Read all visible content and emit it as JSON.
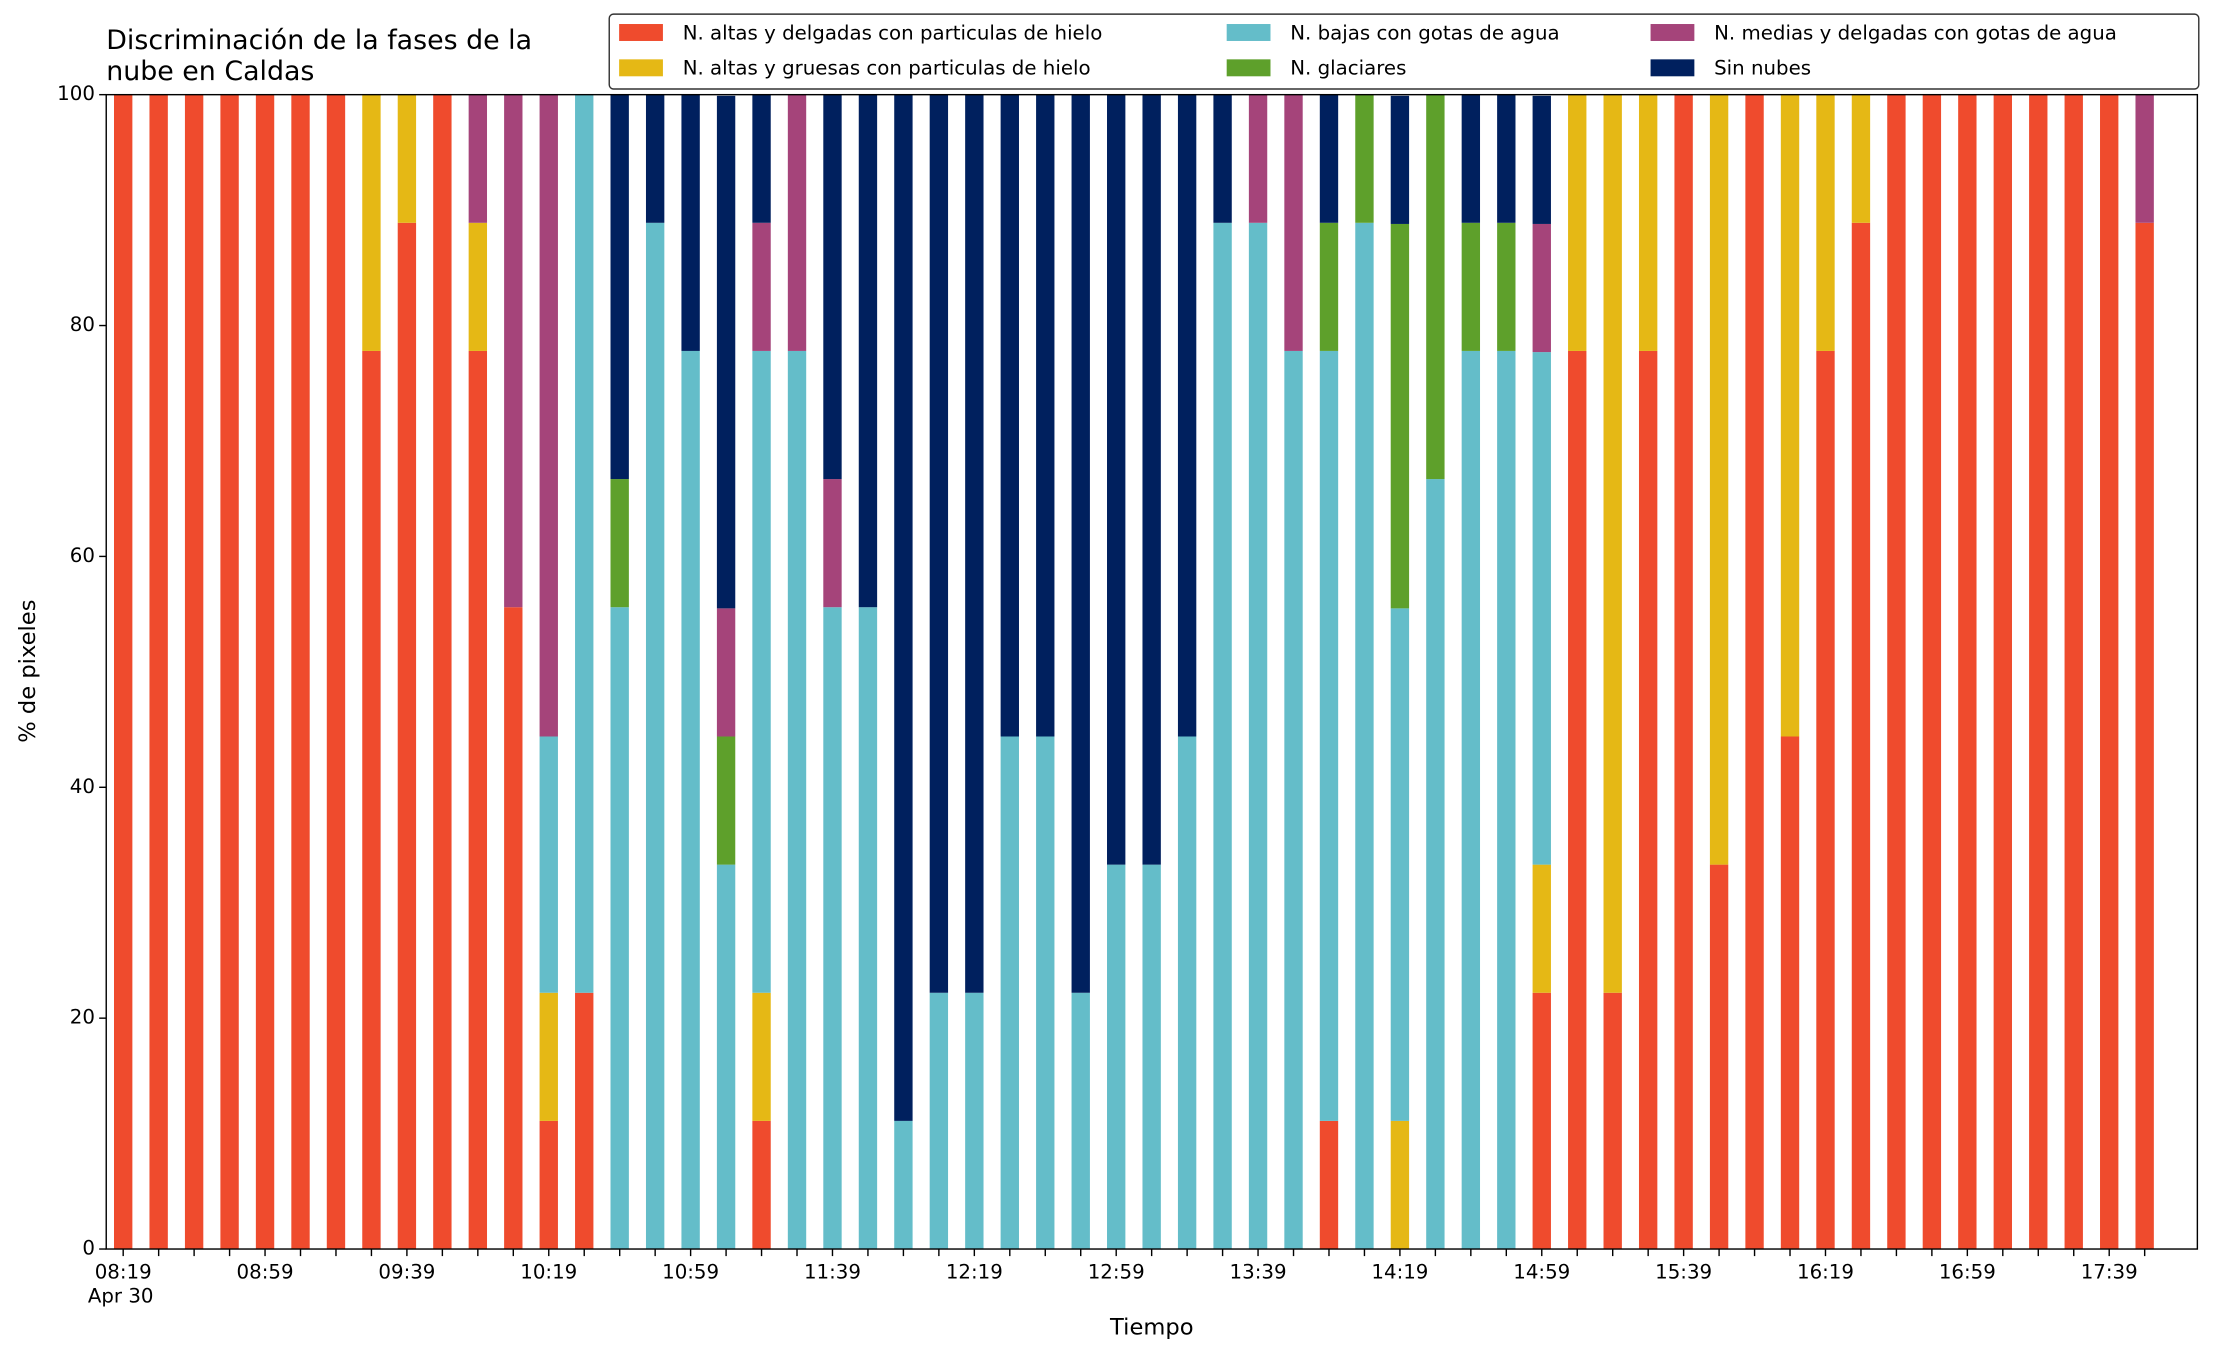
{
  "chart_data": {
    "type": "stacked_bar",
    "title": "Discriminación de la fases de la\nnube en Caldas",
    "xlabel": "Tiempo",
    "ylabel": "% de pixeles",
    "date_label": "Apr 30",
    "categories": [
      "08:19",
      null,
      null,
      null,
      "08:59",
      null,
      null,
      null,
      "09:39",
      null,
      null,
      null,
      "10:19",
      null,
      null,
      null,
      "10:59",
      null,
      null,
      null,
      "11:39",
      null,
      null,
      null,
      "12:19",
      null,
      null,
      null,
      "12:59",
      null,
      null,
      null,
      "13:39",
      null,
      null,
      null,
      "14:19",
      null,
      null,
      null,
      "14:59",
      null,
      null,
      null,
      "15:39",
      null,
      null,
      null,
      "16:19",
      null,
      null,
      null,
      "16:59",
      null,
      null,
      null,
      "17:39",
      null
    ],
    "ylim": [
      0,
      100
    ],
    "yticks": [
      0,
      20,
      40,
      60,
      80,
      100
    ],
    "legend": "upper right",
    "series": [
      {
        "name": "N. altas y delgadas con particulas de hielo",
        "color": "#ef4b2d",
        "values": [
          100,
          100,
          100,
          100,
          100,
          100,
          100,
          77.8,
          88.9,
          100,
          77.8,
          55.6,
          11.1,
          22.2,
          0,
          0,
          0,
          0,
          11.1,
          0,
          0,
          0,
          0,
          0,
          0,
          0,
          0,
          0,
          0,
          0,
          0,
          0,
          0,
          0,
          11.1,
          0,
          0,
          0,
          0,
          0,
          22.2,
          77.8,
          22.2,
          77.8,
          100,
          33.3,
          100,
          44.4,
          77.8,
          88.9,
          100,
          100,
          100,
          100,
          100,
          100,
          100,
          88.9
        ]
      },
      {
        "name": "N. altas y gruesas con particulas de hielo",
        "color": "#e5b815",
        "values": [
          0,
          0,
          0,
          0,
          0,
          0,
          0,
          22.2,
          11.1,
          0,
          11.1,
          0,
          11.1,
          0,
          0,
          0,
          0,
          0,
          11.1,
          0,
          0,
          0,
          0,
          0,
          0,
          0,
          0,
          0,
          0,
          0,
          0,
          0,
          0,
          0,
          0,
          0,
          11.1,
          0,
          0,
          0,
          11.1,
          22.2,
          77.8,
          22.2,
          0,
          66.7,
          0,
          55.6,
          22.2,
          11.1,
          0,
          0,
          0,
          0,
          0,
          0,
          0,
          0
        ]
      },
      {
        "name": "N. bajas con gotas de agua",
        "color": "#64bdc9",
        "values": [
          0,
          0,
          0,
          0,
          0,
          0,
          0,
          0,
          0,
          0,
          0,
          0,
          22.2,
          77.8,
          55.6,
          88.9,
          77.8,
          33.3,
          55.6,
          77.8,
          55.6,
          55.6,
          11.1,
          22.2,
          22.2,
          44.4,
          44.4,
          22.2,
          33.3,
          33.3,
          44.4,
          88.9,
          88.9,
          77.8,
          66.7,
          88.9,
          44.4,
          66.7,
          77.8,
          77.8,
          44.4,
          0,
          0,
          0,
          0,
          0,
          0,
          0,
          0,
          0,
          0,
          0,
          0,
          0,
          0,
          0,
          0,
          0
        ]
      },
      {
        "name": "N. glaciares",
        "color": "#5ea02b",
        "values": [
          0,
          0,
          0,
          0,
          0,
          0,
          0,
          0,
          0,
          0,
          0,
          0,
          0,
          0,
          11.1,
          0,
          0,
          11.1,
          0,
          0,
          0,
          0,
          0,
          0,
          0,
          0,
          0,
          0,
          0,
          0,
          0,
          0,
          0,
          0,
          11.1,
          11.1,
          33.3,
          33.3,
          11.1,
          11.1,
          0,
          0,
          0,
          0,
          0,
          0,
          0,
          0,
          0,
          0,
          0,
          0,
          0,
          0,
          0,
          0,
          0,
          0
        ]
      },
      {
        "name": "N. medias y delgadas con gotas de agua",
        "color": "#a5447a",
        "values": [
          0,
          0,
          0,
          0,
          0,
          0,
          0,
          0,
          0,
          0,
          11.1,
          44.4,
          55.6,
          0,
          0,
          0,
          0,
          11.1,
          11.1,
          22.2,
          11.1,
          0,
          0,
          0,
          0,
          0,
          0,
          0,
          0,
          0,
          0,
          0,
          11.1,
          22.2,
          0,
          0,
          0,
          0,
          0,
          0,
          11.1,
          0,
          0,
          0,
          0,
          0,
          0,
          0,
          0,
          0,
          0,
          0,
          0,
          0,
          0,
          0,
          0,
          11.1
        ]
      },
      {
        "name": "Sin nubes",
        "color": "#00205e",
        "values": [
          0,
          0,
          0,
          0,
          0,
          0,
          0,
          0,
          0,
          0,
          0,
          0,
          0,
          0,
          33.3,
          11.1,
          22.2,
          44.4,
          11.1,
          0,
          33.3,
          44.4,
          88.9,
          77.8,
          77.8,
          55.6,
          55.6,
          77.8,
          66.7,
          66.7,
          55.6,
          11.1,
          0,
          0,
          11.1,
          0,
          11.1,
          0,
          11.1,
          11.1,
          11.1,
          0,
          0,
          0,
          0,
          0,
          0,
          0,
          0,
          0,
          0,
          0,
          0,
          0,
          0,
          0,
          0,
          0
        ]
      }
    ]
  }
}
